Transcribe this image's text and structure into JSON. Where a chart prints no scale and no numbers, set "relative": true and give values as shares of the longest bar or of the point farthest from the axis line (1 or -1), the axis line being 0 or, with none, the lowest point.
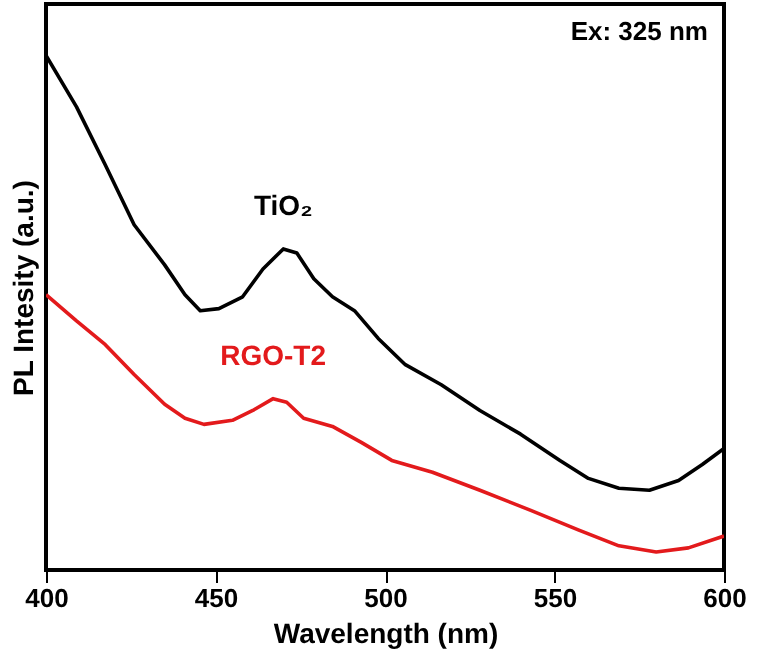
{
  "chart_data": {
    "type": "line",
    "xlabel": "Wavelength (nm)",
    "ylabel": "PL Intesity (a.u.)",
    "relative": true,
    "xlim": [
      400,
      600
    ],
    "xticks": [
      400,
      450,
      500,
      550,
      600
    ],
    "grid": false,
    "legend": false,
    "tick_labels": "x",
    "marker": "none",
    "line_style": "solid",
    "annotations": [
      "Ex: 325 nm"
    ],
    "series": [
      {
        "name": "TiO₂",
        "color": "#000000",
        "x": [
          400,
          409,
          417.5,
          426,
          435,
          441,
          445.5,
          451,
          458,
          464,
          470,
          474,
          479,
          484.5,
          491,
          498,
          506,
          516.6,
          528,
          540,
          551.6,
          560,
          569,
          578,
          586.6,
          593.6,
          600
        ],
        "values": [
          1.0,
          0.9,
          0.787,
          0.671,
          0.593,
          0.535,
          0.504,
          0.508,
          0.531,
          0.585,
          0.624,
          0.616,
          0.566,
          0.531,
          0.504,
          0.45,
          0.399,
          0.36,
          0.31,
          0.264,
          0.213,
          0.178,
          0.159,
          0.155,
          0.174,
          0.205,
          0.236
        ]
      },
      {
        "name": "RGO-T2",
        "color": "#e31a1c",
        "x": [
          400,
          409,
          417.5,
          426,
          435,
          441,
          446.6,
          455,
          461,
          467,
          471,
          476,
          484.5,
          493,
          502,
          514,
          528,
          543,
          557,
          569,
          580,
          589.5,
          600
        ],
        "values": [
          0.535,
          0.484,
          0.438,
          0.38,
          0.322,
          0.295,
          0.283,
          0.291,
          0.31,
          0.333,
          0.326,
          0.295,
          0.279,
          0.248,
          0.213,
          0.19,
          0.155,
          0.116,
          0.078,
          0.047,
          0.035,
          0.043,
          0.066
        ]
      }
    ]
  }
}
